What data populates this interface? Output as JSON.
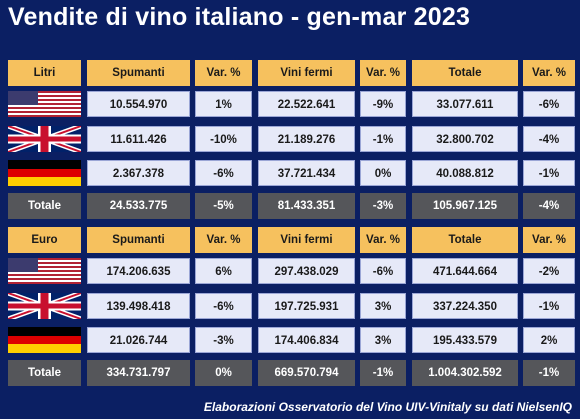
{
  "title": "Vendite di vino italiano - gen-mar 2023",
  "headers": [
    "Spumanti",
    "Var. %",
    "Vini fermi",
    "Var. %",
    "Totale",
    "Var. %"
  ],
  "colors": {
    "background": "#0b1f63",
    "header": "#f6c15e",
    "data_cell": "#e6e9f8",
    "total_row": "#55565a"
  },
  "tables": [
    {
      "label": "Litri",
      "rows": [
        {
          "flag": "us-flag-icon",
          "values": [
            "10.554.970",
            "1%",
            "22.522.641",
            "-9%",
            "33.077.611",
            "-6%"
          ]
        },
        {
          "flag": "uk-flag-icon",
          "values": [
            "11.611.426",
            "-10%",
            "21.189.276",
            "-1%",
            "32.800.702",
            "-4%"
          ]
        },
        {
          "flag": "de-flag-icon",
          "values": [
            "2.367.378",
            "-6%",
            "37.721.434",
            "0%",
            "40.088.812",
            "-1%"
          ]
        }
      ],
      "total": {
        "label": "Totale",
        "values": [
          "24.533.775",
          "-5%",
          "81.433.351",
          "-3%",
          "105.967.125",
          "-4%"
        ]
      }
    },
    {
      "label": "Euro",
      "rows": [
        {
          "flag": "us-flag-icon",
          "values": [
            "174.206.635",
            "6%",
            "297.438.029",
            "-6%",
            "471.644.664",
            "-2%"
          ]
        },
        {
          "flag": "uk-flag-icon",
          "values": [
            "139.498.418",
            "-6%",
            "197.725.931",
            "3%",
            "337.224.350",
            "-1%"
          ]
        },
        {
          "flag": "de-flag-icon",
          "values": [
            "21.026.744",
            "-3%",
            "174.406.834",
            "3%",
            "195.433.579",
            "2%"
          ]
        }
      ],
      "total": {
        "label": "Totale",
        "values": [
          "334.731.797",
          "0%",
          "669.570.794",
          "-1%",
          "1.004.302.592",
          "-1%"
        ]
      }
    }
  ],
  "footer": "Elaborazioni Osservatorio del Vino UIV-Vinitaly su dati NielsenIQ"
}
